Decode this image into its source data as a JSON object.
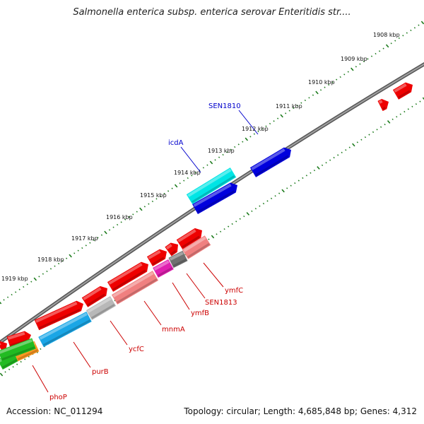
{
  "title": "Salmonella enterica subsp. enterica serovar Enteritidis str....",
  "footer": {
    "accession": "Accession: NC_011294",
    "summary": "Topology: circular; Length: 4,685,848 bp; Genes: 4,312"
  },
  "ticks": [
    "1908 kbp",
    "1909 kbp",
    "1910 kbp",
    "1911 kbp",
    "1912 kbp",
    "1913 kbp",
    "1914 kbp",
    "1915 kbp",
    "1916 kbp",
    "1917 kbp",
    "1918 kbp",
    "1919 kbp"
  ],
  "labels": [
    {
      "text": "SEN1810",
      "color": "#0000cc"
    },
    {
      "text": "icdA",
      "color": "#0000cc"
    },
    {
      "text": "ymfC",
      "color": "#cc0000"
    },
    {
      "text": "SEN1813",
      "color": "#cc0000"
    },
    {
      "text": "ymfB",
      "color": "#cc0000"
    },
    {
      "text": "mnmA",
      "color": "#cc0000"
    },
    {
      "text": "ycfC",
      "color": "#cc0000"
    },
    {
      "text": "purB",
      "color": "#cc0000"
    },
    {
      "text": "phoP",
      "color": "#cc0000"
    }
  ],
  "colors": {
    "backbone": "#7a7a7a",
    "tick": "#1a7a1a",
    "forward_gene": "#ee0000",
    "reverse_gene": "#0000dd",
    "cyan_gene": "#00e5e5",
    "sky_gene": "#1aa6e6",
    "pink_gene": "#f08080",
    "gray_gene": "#b8b8b8",
    "green_gene": "#22bb22",
    "orange_gene": "#ff9922",
    "magenta_gene": "#e020b0"
  }
}
